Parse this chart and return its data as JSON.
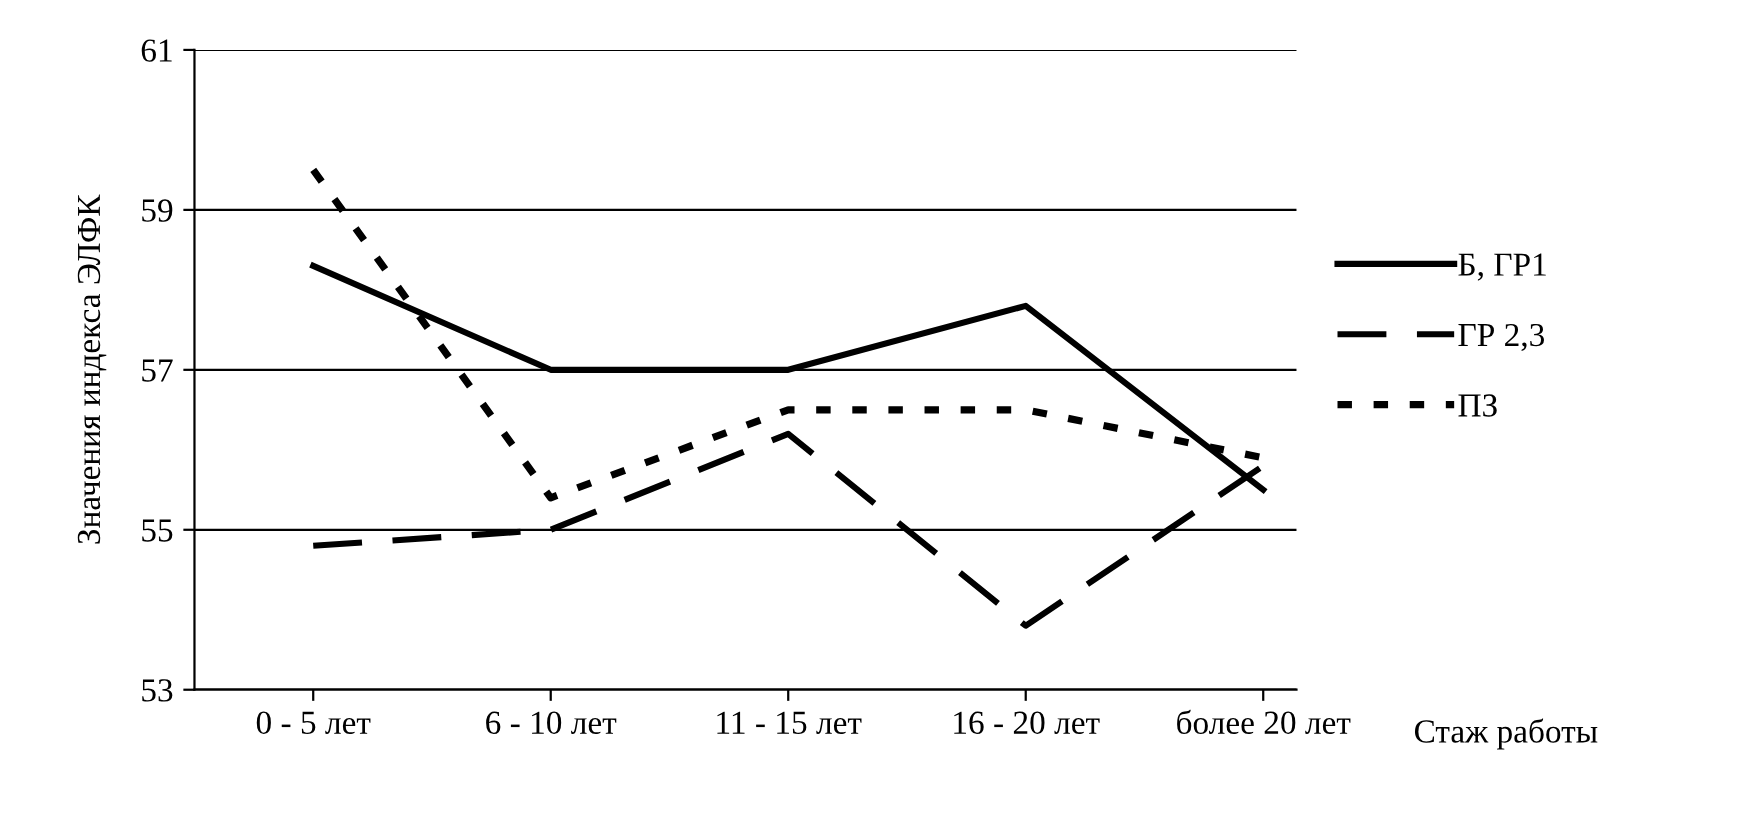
{
  "chart_data": {
    "type": "line",
    "ylabel": "Значения индекса ЭЛФК",
    "xlabel": "Стаж работы",
    "categories": [
      "0 - 5 лет",
      "6 - 10 лет",
      "11 - 15 лет",
      "16 - 20 лет",
      "более 20 лет"
    ],
    "series": [
      {
        "name": "Б, ГР1",
        "color": "#000000",
        "line_style": "solid",
        "values": [
          58.3,
          57.0,
          57.0,
          57.8,
          55.5
        ]
      },
      {
        "name": "ГР 2,3",
        "color": "#000000",
        "line_style": "dashed",
        "values": [
          54.8,
          55.0,
          56.2,
          53.8,
          55.8
        ]
      },
      {
        "name": "ПЗ",
        "color": "#000000",
        "line_style": "dotted",
        "values": [
          59.5,
          55.4,
          56.5,
          56.5,
          55.9
        ]
      }
    ],
    "ylim": [
      53,
      61
    ],
    "yticks": [
      53,
      55,
      57,
      59,
      61
    ],
    "grid": "y",
    "legend": "right",
    "marker": "none"
  }
}
